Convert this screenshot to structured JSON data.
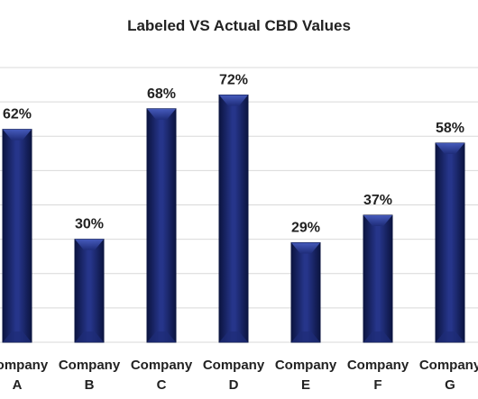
{
  "chart_data": {
    "type": "bar",
    "title": "Labeled VS Actual CBD  Values",
    "categories": [
      [
        "Company",
        "A"
      ],
      [
        "Company",
        "B"
      ],
      [
        "Company",
        "C"
      ],
      [
        "Company",
        "D"
      ],
      [
        "Company",
        "E"
      ],
      [
        "Company",
        "F"
      ],
      [
        "Company",
        "G"
      ]
    ],
    "values": [
      62,
      30,
      68,
      72,
      29,
      37,
      58
    ],
    "value_labels": [
      "62%",
      "30%",
      "68%",
      "72%",
      "29%",
      "37%",
      "58%"
    ],
    "ylim": [
      0,
      80
    ],
    "grid": true,
    "legend": "none",
    "xlabel": "",
    "ylabel": ""
  },
  "colors": {
    "bar_dark": "#0b1440",
    "bar_mid": "#1e2c78",
    "bar_light": "#3f55b8",
    "gridline": "#d9d9d9",
    "text": "#222222"
  }
}
